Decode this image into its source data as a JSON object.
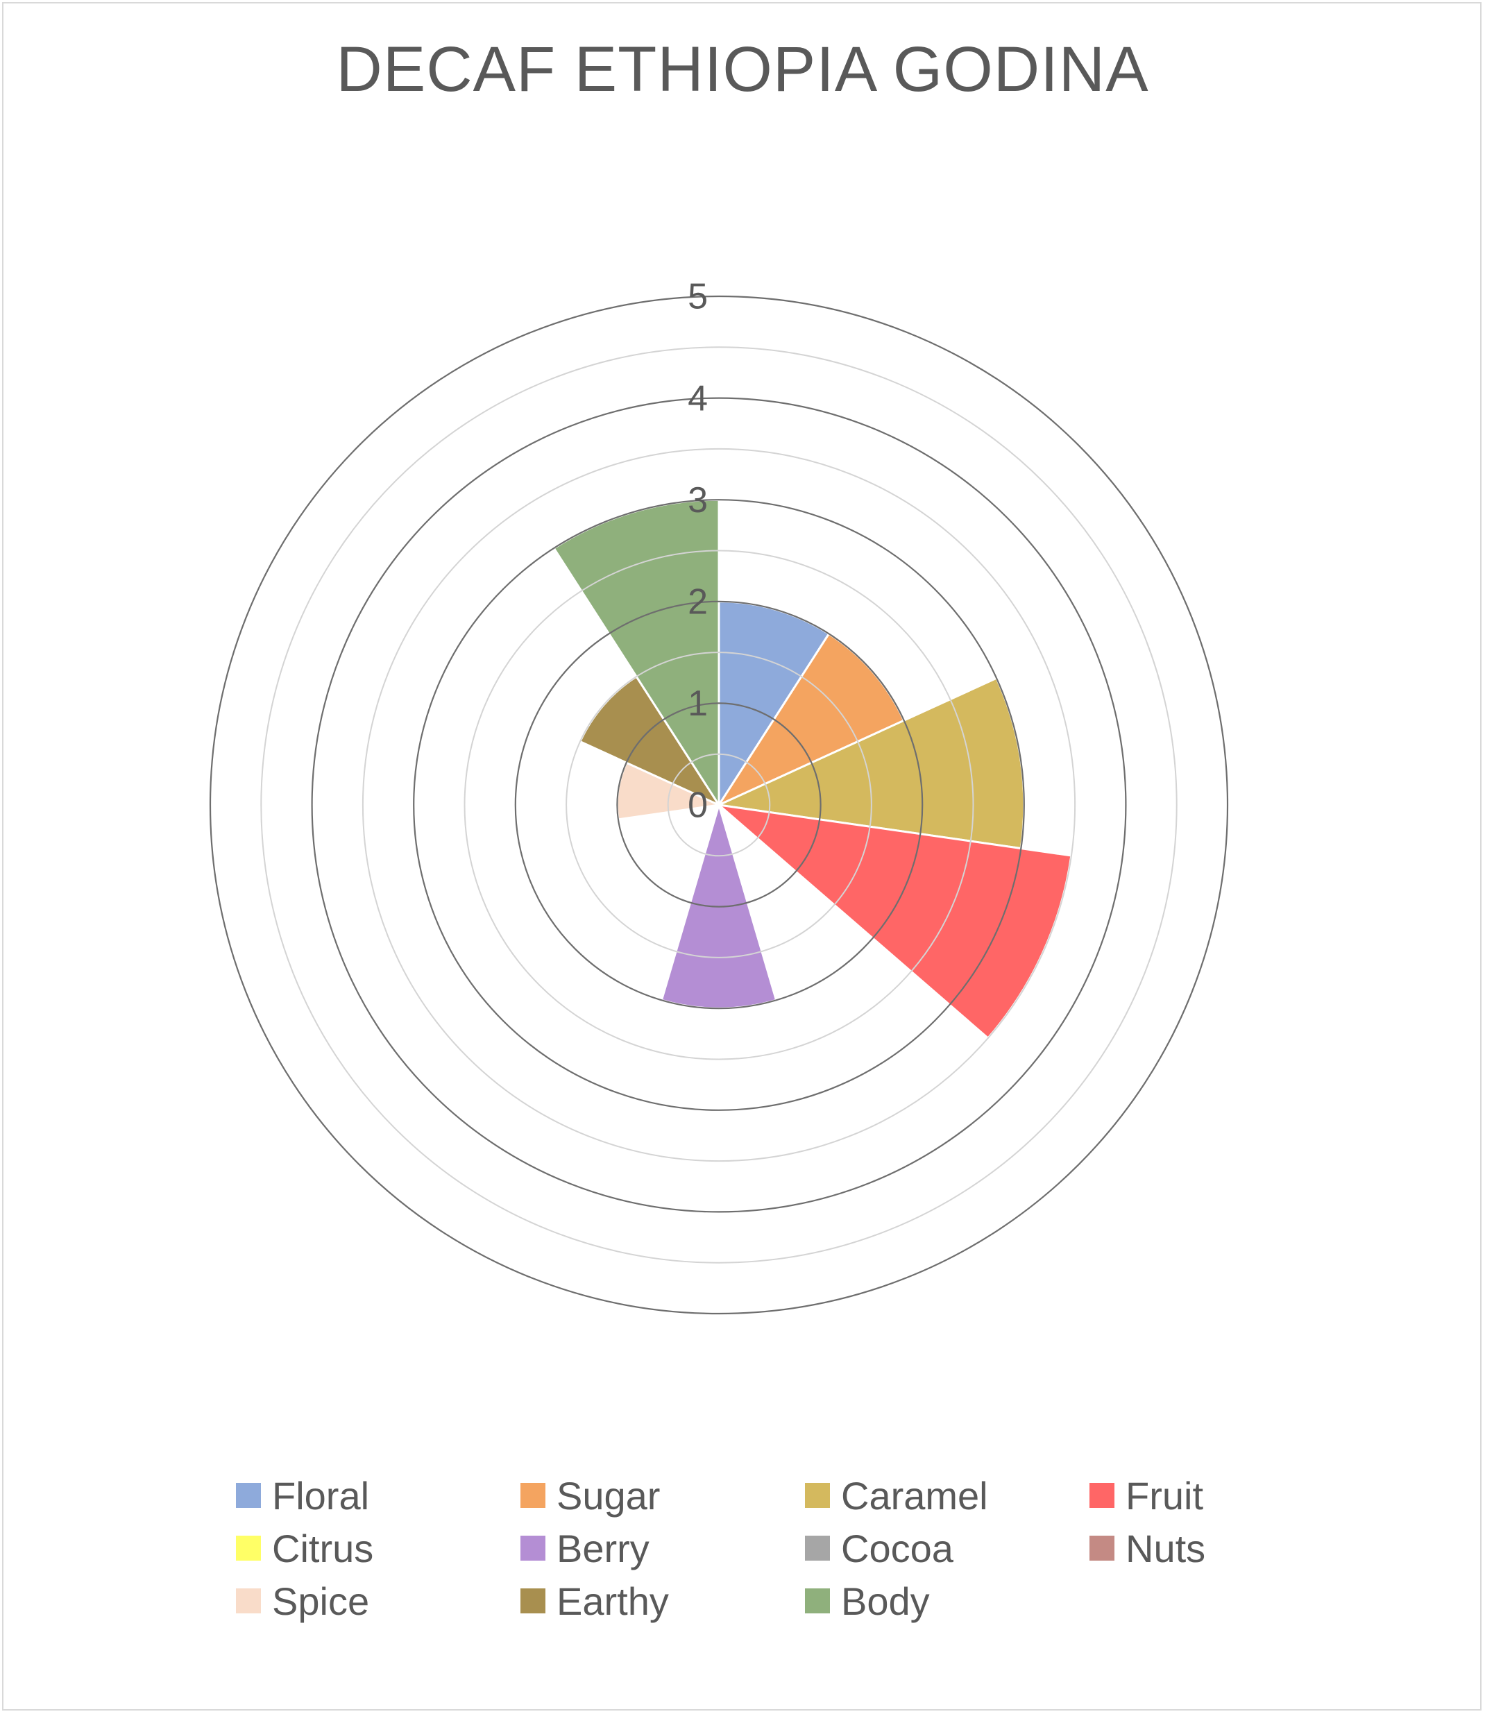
{
  "chart_data": {
    "type": "polar-area",
    "title": "DECAF ETHIOPIA GODINA",
    "categories": [
      "Floral",
      "Sugar",
      "Caramel",
      "Fruit",
      "Citrus",
      "Berry",
      "Cocoa",
      "Nuts",
      "Spice",
      "Earthy",
      "Body"
    ],
    "values": [
      2,
      2,
      3,
      3.5,
      0,
      2,
      0,
      0,
      1,
      1.5,
      3
    ],
    "colors": [
      "#8eaadb",
      "#f4a460",
      "#d4b95e",
      "#ff6666",
      "#ffff66",
      "#b48ed4",
      "#a6a6a6",
      "#c48a84",
      "#f9dcc9",
      "#a88f4f",
      "#8fb07c"
    ],
    "rlim": [
      0,
      5
    ],
    "radial_ticks": [
      "0",
      "1",
      "2",
      "3",
      "4",
      "5"
    ],
    "grid": true,
    "legend": "bottom"
  }
}
